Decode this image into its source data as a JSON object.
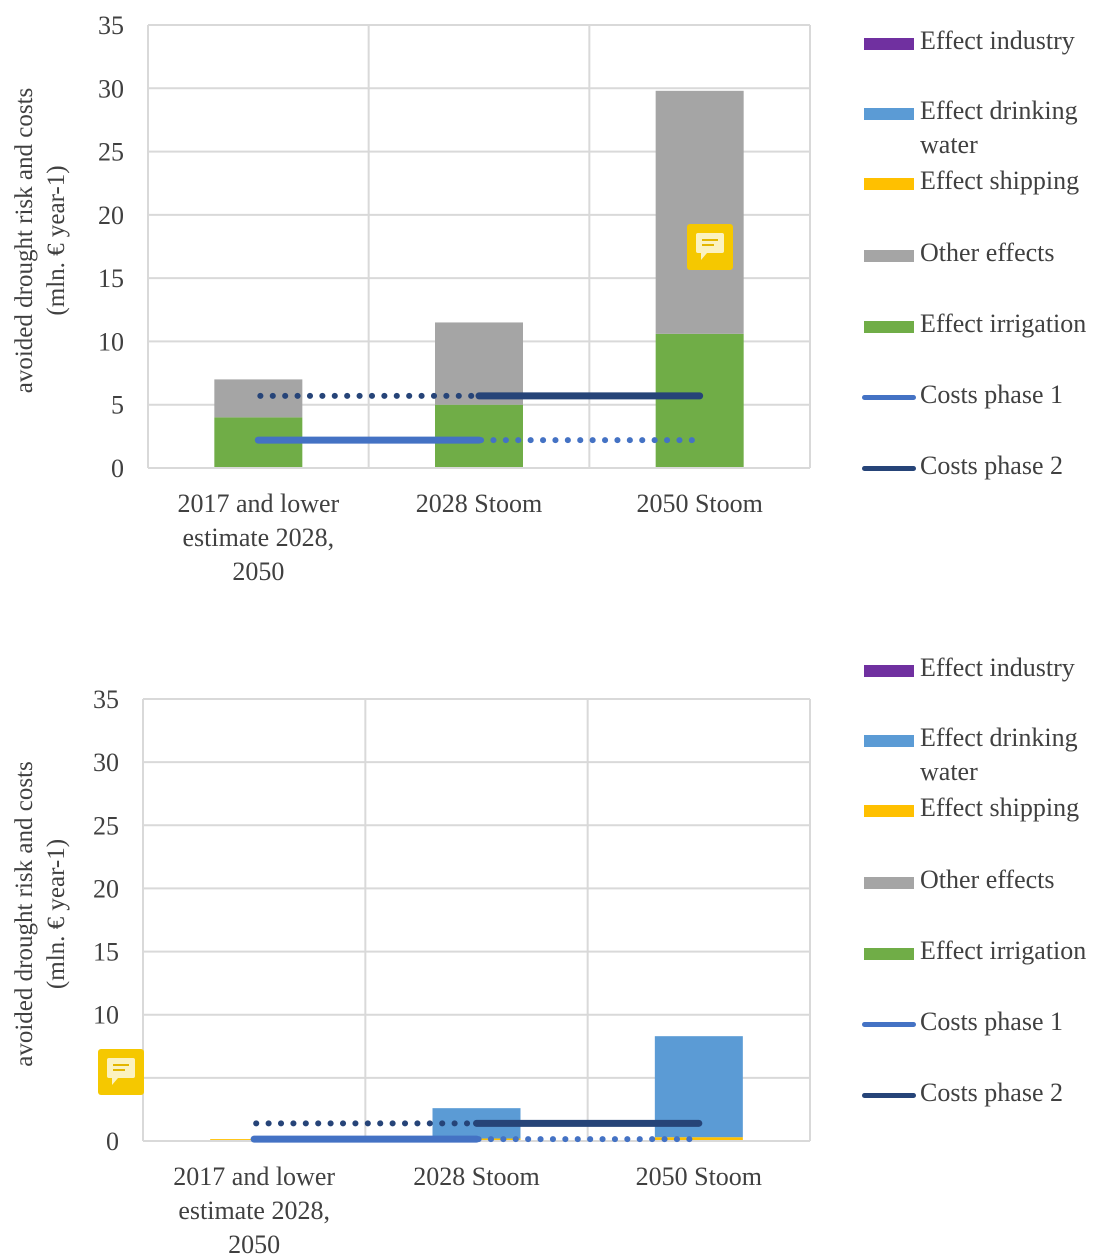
{
  "legend": [
    {
      "label": "Effect industry",
      "kind": "bar",
      "color": "#7030a0"
    },
    {
      "label": "Effect drinking water",
      "kind": "bar",
      "color": "#5b9bd5"
    },
    {
      "label": "Effect shipping",
      "kind": "bar",
      "color": "#ffc000"
    },
    {
      "label": "Other effects",
      "kind": "bar",
      "color": "#a5a5a5"
    },
    {
      "label": "Effect irrigation",
      "kind": "bar",
      "color": "#70ad47"
    },
    {
      "label": "Costs phase 1",
      "kind": "line",
      "color": "#4472c4"
    },
    {
      "label": "Costs phase 2",
      "kind": "line",
      "color": "#264478"
    }
  ],
  "chart_data": [
    {
      "type": "bar",
      "stacked": true,
      "ylabel": "avoided drought risk and costs (mln. € year-1)",
      "ylim": [
        0,
        35
      ],
      "yticks": [
        "0",
        "5",
        "10",
        "15",
        "20",
        "25",
        "30",
        "35"
      ],
      "grid": true,
      "legend_position": "right",
      "categories": [
        "2017 and lower estimate 2028, 2050",
        "2028 Stoom",
        "2050 Stoom"
      ],
      "series": [
        {
          "name": "Effect irrigation",
          "color": "#70ad47",
          "values": [
            4.0,
            5.0,
            10.6
          ]
        },
        {
          "name": "Effect shipping",
          "color": "#ffc000",
          "values": [
            0,
            0,
            0
          ]
        },
        {
          "name": "Effect drinking water",
          "color": "#5b9bd5",
          "values": [
            0,
            0,
            0
          ]
        },
        {
          "name": "Effect industry",
          "color": "#7030a0",
          "values": [
            0,
            0,
            0
          ]
        },
        {
          "name": "Other effects",
          "color": "#a5a5a5",
          "values": [
            3.0,
            6.5,
            19.2
          ]
        }
      ],
      "cost_lines": [
        {
          "name": "Costs phase 1",
          "color": "#4472c4",
          "value": 2.2,
          "solid": [
            0,
            1
          ],
          "dotted": [
            1,
            2
          ]
        },
        {
          "name": "Costs phase 2",
          "color": "#264478",
          "value": 5.7,
          "solid": [
            1,
            2
          ],
          "dotted": [
            0,
            1
          ]
        }
      ],
      "comment_marker": {
        "category_index": 2,
        "value": 17.5
      }
    },
    {
      "type": "bar",
      "stacked": true,
      "ylabel": "avoided drought risk and costs (mln. € year-1)",
      "ylim": [
        0,
        35
      ],
      "yticks": [
        "0",
        "5",
        "10",
        "15",
        "20",
        "25",
        "30",
        "35"
      ],
      "grid": true,
      "legend_position": "right",
      "categories": [
        "2017 and lower estimate 2028, 2050",
        "2028 Stoom",
        "2050 Stoom"
      ],
      "series": [
        {
          "name": "Effect irrigation",
          "color": "#70ad47",
          "values": [
            0,
            0,
            0
          ]
        },
        {
          "name": "Effect shipping",
          "color": "#ffc000",
          "values": [
            0.15,
            0.2,
            0.3
          ]
        },
        {
          "name": "Effect drinking water",
          "color": "#5b9bd5",
          "values": [
            0,
            2.4,
            8.0
          ]
        },
        {
          "name": "Effect industry",
          "color": "#7030a0",
          "values": [
            0,
            0,
            0
          ]
        },
        {
          "name": "Other effects",
          "color": "#a5a5a5",
          "values": [
            0,
            0,
            0
          ]
        }
      ],
      "cost_lines": [
        {
          "name": "Costs phase 1",
          "color": "#4472c4",
          "value": 0.15,
          "solid": [
            0,
            1
          ],
          "dotted": [
            1,
            2
          ]
        },
        {
          "name": "Costs phase 2",
          "color": "#264478",
          "value": 1.4,
          "solid": [
            1,
            2
          ],
          "dotted": [
            0,
            1
          ]
        }
      ],
      "comment_marker": {
        "at_axis": true,
        "value": 5.5
      }
    }
  ]
}
